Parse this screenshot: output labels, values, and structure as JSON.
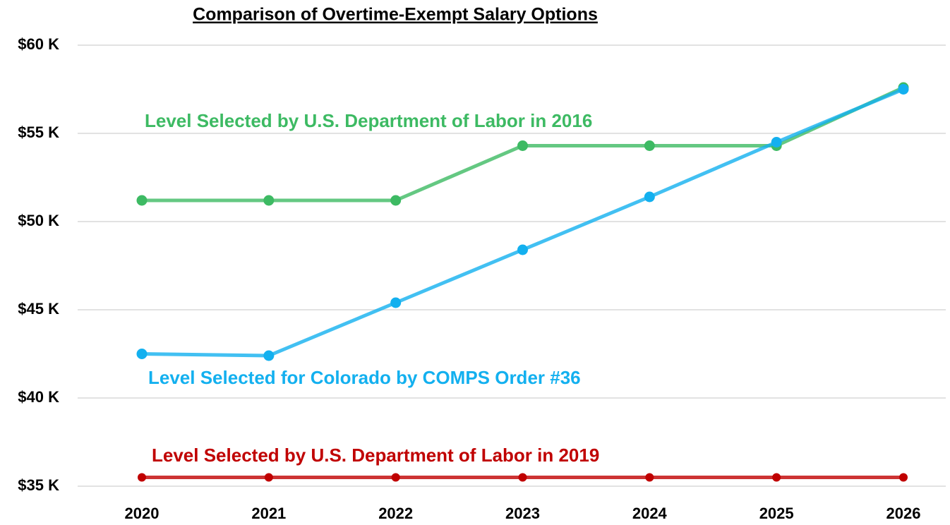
{
  "chart_data": {
    "type": "line",
    "title": "Comparison of Overtime-Exempt Salary Options",
    "categories": [
      "2020",
      "2021",
      "2022",
      "2023",
      "2024",
      "2025",
      "2026"
    ],
    "series": [
      {
        "name": "Level Selected by U.S. Department of Labor in 2016",
        "color": "#3dba63",
        "values": [
          51200,
          51200,
          51200,
          54300,
          54300,
          54300,
          57600
        ]
      },
      {
        "name": "Level Selected for Colorado by COMPS Order #36",
        "color": "#13b0ef",
        "values": [
          42500,
          42400,
          45400,
          48400,
          51400,
          54500,
          57500
        ]
      },
      {
        "name": "Level Selected by U.S. Department of Labor in 2019",
        "color": "#c00000",
        "values": [
          35500,
          35500,
          35500,
          35500,
          35500,
          35500,
          35500
        ]
      }
    ],
    "ylim": [
      35000,
      60000
    ],
    "yticks": [
      {
        "value": 35000,
        "label": "$35 K"
      },
      {
        "value": 40000,
        "label": "$40 K"
      },
      {
        "value": 45000,
        "label": "$45 K"
      },
      {
        "value": 50000,
        "label": "$50 K"
      },
      {
        "value": 55000,
        "label": "$55 K"
      },
      {
        "value": 60000,
        "label": "$60 K"
      }
    ],
    "grid": true
  }
}
